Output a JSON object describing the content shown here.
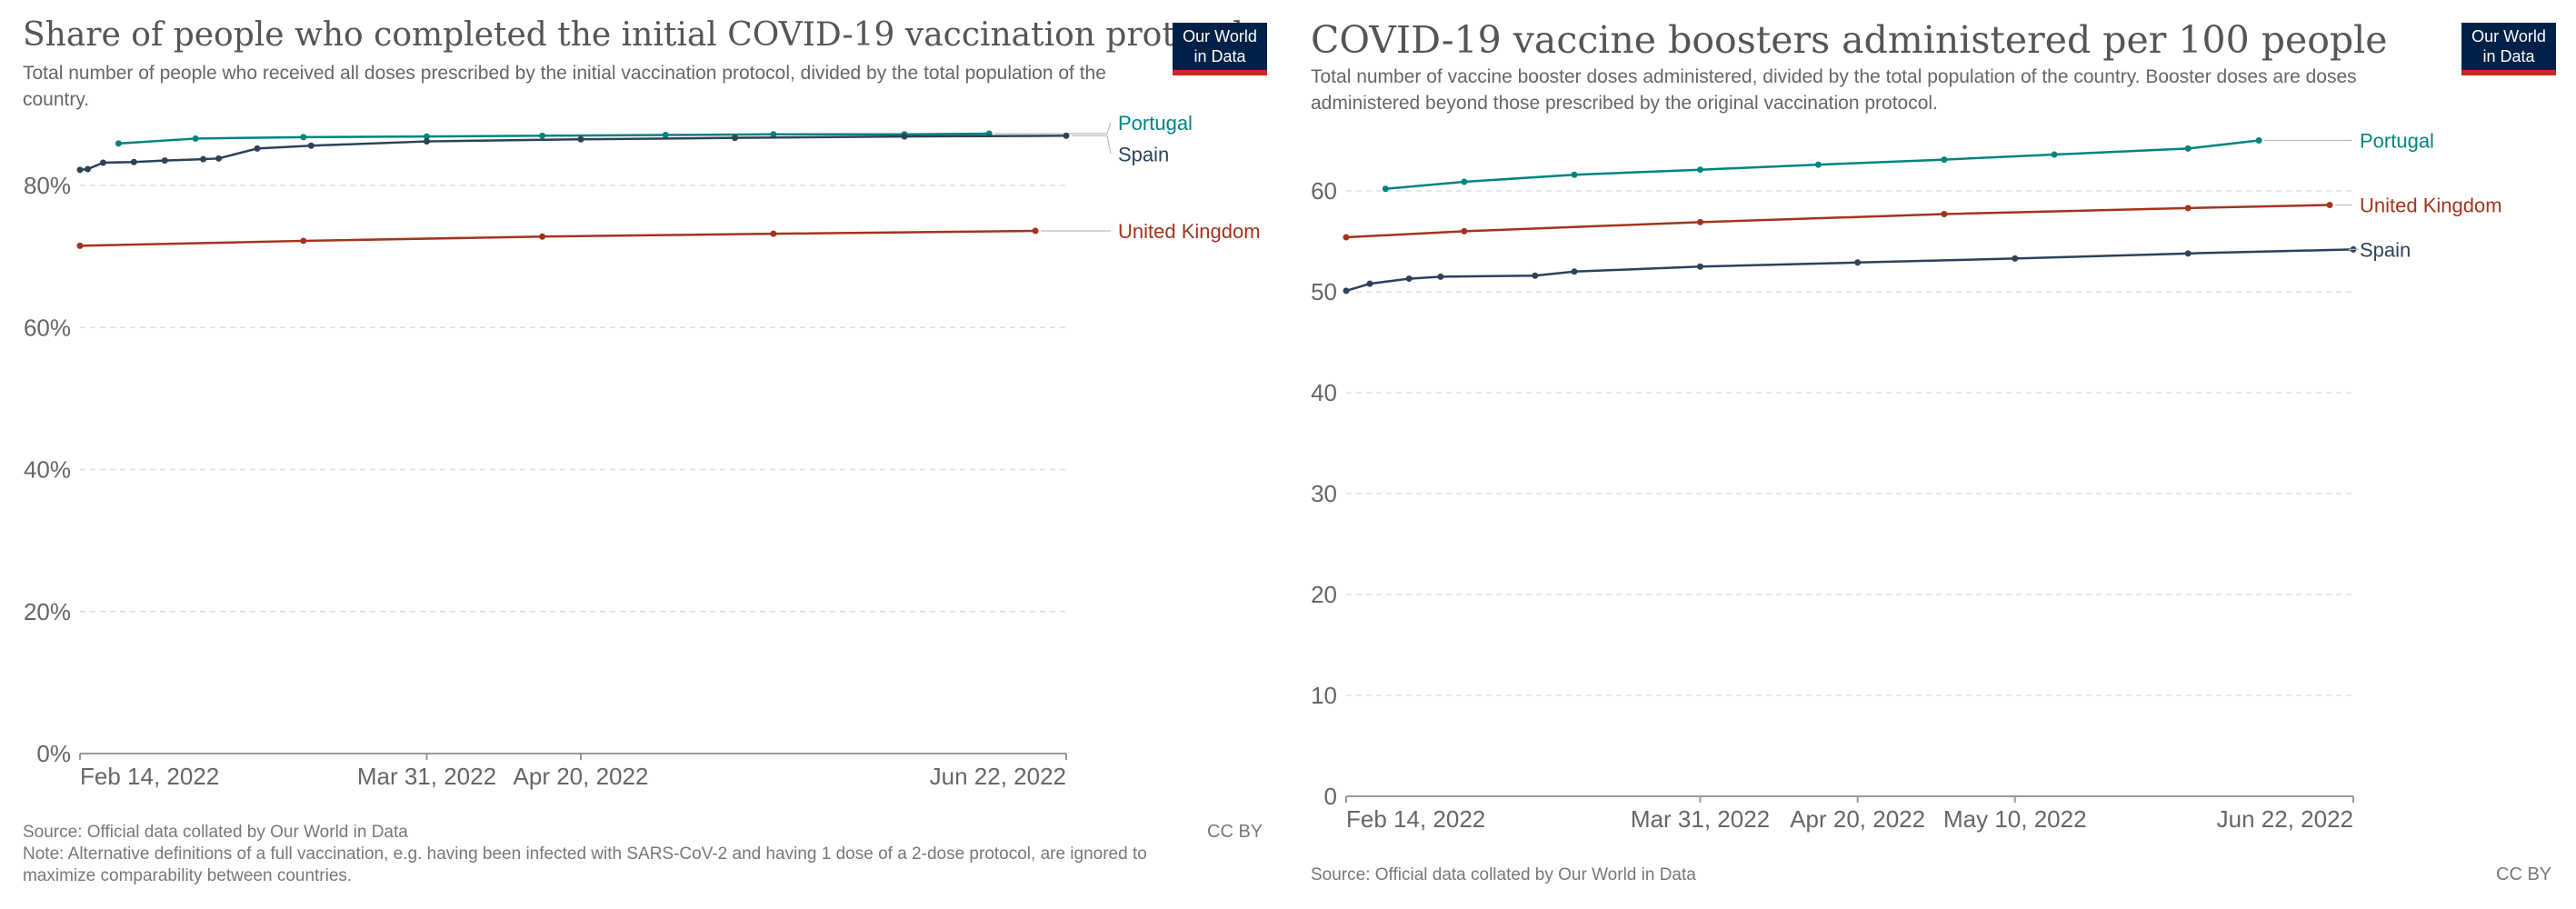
{
  "left": {
    "title": "Share of people who completed the initial COVID-19 vaccination protocol",
    "subtitle": "Total number of people who received all doses prescribed by the initial vaccination protocol, divided by the total population of the country.",
    "logo": {
      "line1": "Our World",
      "line2": "in Data"
    },
    "source": "Source: Official data collated by Our World in Data",
    "note": "Note: Alternative definitions of a full vaccination, e.g. having been infected with SARS-CoV-2 and having 1 dose of a 2-dose protocol, are ignored to maximize comparability between countries.",
    "license": "CC BY"
  },
  "right": {
    "title": "COVID-19 vaccine boosters administered per 100 people",
    "subtitle": "Total number of vaccine booster doses administered, divided by the total population of the country. Booster doses are doses administered beyond those prescribed by the original vaccination protocol.",
    "logo": {
      "line1": "Our World",
      "line2": "in Data"
    },
    "source": "Source: Official data collated by Our World in Data",
    "license": "CC BY"
  },
  "colors": {
    "portugal": "#00847e",
    "spain": "#2d4158",
    "united_kingdom": "#a2341c",
    "grid": "#dddddd",
    "axis": "#999999",
    "tick_text": "#666666"
  },
  "chart_data": [
    {
      "type": "line",
      "x_type": "date",
      "y_unit": "%",
      "ylim": [
        0,
        80
      ],
      "yticks": [
        0,
        20,
        40,
        60,
        80
      ],
      "ytick_labels": [
        "0%",
        "20%",
        "40%",
        "60%",
        "80%"
      ],
      "xlim": [
        "2022-02-14",
        "2022-06-22"
      ],
      "xticks": [
        "2022-02-14",
        "2022-03-31",
        "2022-04-20",
        "2022-06-22"
      ],
      "xtick_labels": [
        "Feb 14, 2022",
        "Mar 31, 2022",
        "Apr 20, 2022",
        "Jun 22, 2022"
      ],
      "grid": true,
      "legend_position": "right",
      "series": [
        {
          "name": "Portugal",
          "color_key": "portugal",
          "label_offset": -12,
          "points": [
            [
              "2022-02-19",
              85.9
            ],
            [
              "2022-03-01",
              86.6
            ],
            [
              "2022-03-15",
              86.8
            ],
            [
              "2022-03-31",
              86.9
            ],
            [
              "2022-04-15",
              87.0
            ],
            [
              "2022-05-01",
              87.1
            ],
            [
              "2022-05-15",
              87.2
            ],
            [
              "2022-06-01",
              87.2
            ],
            [
              "2022-06-12",
              87.3
            ]
          ]
        },
        {
          "name": "Spain",
          "color_key": "spain",
          "label_offset": 20,
          "points": [
            [
              "2022-02-14",
              82.2
            ],
            [
              "2022-02-15",
              82.3
            ],
            [
              "2022-02-17",
              83.2
            ],
            [
              "2022-02-21",
              83.3
            ],
            [
              "2022-02-25",
              83.5
            ],
            [
              "2022-03-02",
              83.7
            ],
            [
              "2022-03-04",
              83.8
            ],
            [
              "2022-03-09",
              85.2
            ],
            [
              "2022-03-16",
              85.6
            ],
            [
              "2022-03-31",
              86.2
            ],
            [
              "2022-04-20",
              86.5
            ],
            [
              "2022-05-10",
              86.7
            ],
            [
              "2022-06-01",
              86.9
            ],
            [
              "2022-06-22",
              87.0
            ]
          ]
        },
        {
          "name": "United Kingdom",
          "color_key": "united_kingdom",
          "label_offset": 0,
          "points": [
            [
              "2022-02-14",
              71.5
            ],
            [
              "2022-03-15",
              72.2
            ],
            [
              "2022-04-15",
              72.8
            ],
            [
              "2022-05-15",
              73.2
            ],
            [
              "2022-06-18",
              73.6
            ]
          ]
        }
      ]
    },
    {
      "type": "line",
      "x_type": "date",
      "ylim": [
        0,
        60
      ],
      "yticks": [
        0,
        10,
        20,
        30,
        40,
        50,
        60
      ],
      "ytick_labels": [
        "0",
        "10",
        "20",
        "30",
        "40",
        "50",
        "60"
      ],
      "xlim": [
        "2022-02-14",
        "2022-06-22"
      ],
      "xticks": [
        "2022-02-14",
        "2022-03-31",
        "2022-04-20",
        "2022-05-10",
        "2022-06-22"
      ],
      "xtick_labels": [
        "Feb 14, 2022",
        "Mar 31, 2022",
        "Apr 20, 2022",
        "May 10, 2022",
        "Jun 22, 2022"
      ],
      "grid": true,
      "legend_position": "right",
      "series": [
        {
          "name": "Portugal",
          "color_key": "portugal",
          "label_offset": 0,
          "points": [
            [
              "2022-02-19",
              60.2
            ],
            [
              "2022-03-01",
              60.9
            ],
            [
              "2022-03-15",
              61.6
            ],
            [
              "2022-03-31",
              62.1
            ],
            [
              "2022-04-15",
              62.6
            ],
            [
              "2022-05-01",
              63.1
            ],
            [
              "2022-05-15",
              63.6
            ],
            [
              "2022-06-01",
              64.2
            ],
            [
              "2022-06-10",
              65.0
            ]
          ]
        },
        {
          "name": "United Kingdom",
          "color_key": "united_kingdom",
          "label_offset": 0,
          "points": [
            [
              "2022-02-14",
              55.4
            ],
            [
              "2022-03-01",
              56.0
            ],
            [
              "2022-03-31",
              56.9
            ],
            [
              "2022-05-01",
              57.7
            ],
            [
              "2022-06-01",
              58.3
            ],
            [
              "2022-06-19",
              58.6
            ]
          ]
        },
        {
          "name": "Spain",
          "color_key": "spain",
          "label_offset": 0,
          "points": [
            [
              "2022-02-14",
              50.1
            ],
            [
              "2022-02-17",
              50.8
            ],
            [
              "2022-02-22",
              51.3
            ],
            [
              "2022-02-26",
              51.5
            ],
            [
              "2022-03-10",
              51.6
            ],
            [
              "2022-03-15",
              52.0
            ],
            [
              "2022-03-31",
              52.5
            ],
            [
              "2022-04-20",
              52.9
            ],
            [
              "2022-05-10",
              53.3
            ],
            [
              "2022-06-01",
              53.8
            ],
            [
              "2022-06-22",
              54.2
            ]
          ]
        }
      ]
    }
  ]
}
